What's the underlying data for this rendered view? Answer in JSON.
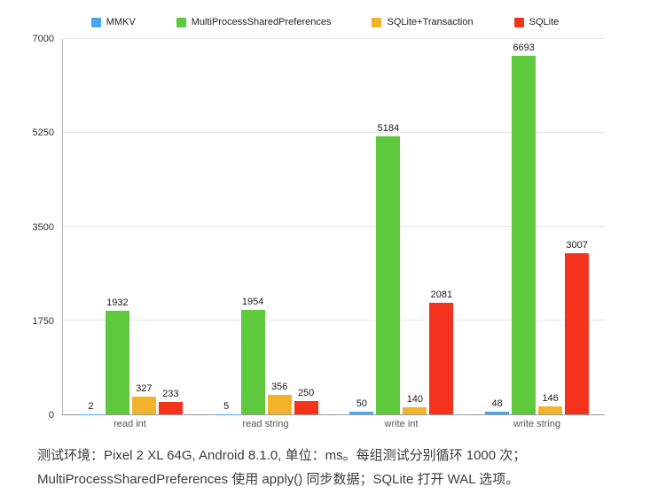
{
  "chart_data": {
    "type": "bar",
    "categories": [
      "read int",
      "read string",
      "write int",
      "write string"
    ],
    "series": [
      {
        "name": "MMKV",
        "color": "#4aa5f0",
        "values": [
          2,
          5,
          50,
          48
        ]
      },
      {
        "name": "MultiProcessSharedPreferences",
        "color": "#5ec93c",
        "values": [
          1932,
          1954,
          5184,
          6693
        ]
      },
      {
        "name": "SQLite+Transaction",
        "color": "#f2b32b",
        "values": [
          327,
          356,
          140,
          146
        ]
      },
      {
        "name": "SQLite",
        "color": "#f5331c",
        "values": [
          233,
          250,
          2081,
          3007
        ]
      }
    ],
    "ylim": [
      0,
      7000
    ],
    "yticks": [
      0,
      1750,
      3500,
      5250,
      7000
    ],
    "grid": true,
    "legend_position": "top",
    "title": "",
    "xlabel": "",
    "ylabel": ""
  },
  "caption": {
    "line1": "测试环境：Pixel 2 XL 64G, Android 8.1.0, 单位：ms。每组测试分别循环 1000 次；",
    "line2": "MultiProcessSharedPreferences 使用 apply() 同步数据；SQLite 打开 WAL 选项。"
  }
}
